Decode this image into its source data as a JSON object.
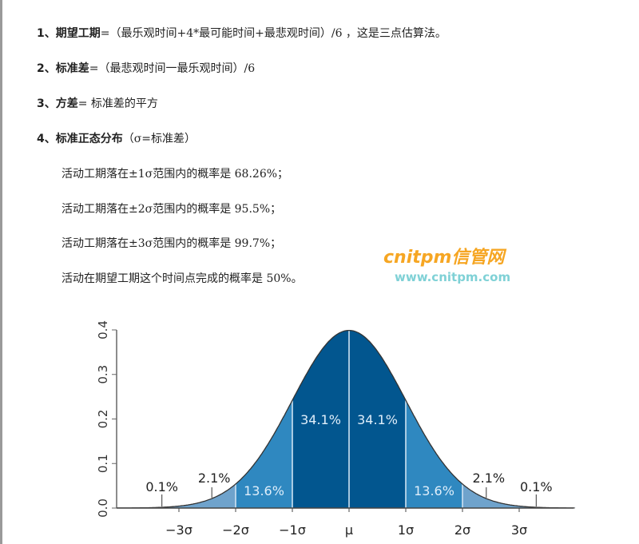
{
  "formulas": [
    {
      "num": "1、",
      "term": "期望工期",
      "rest": "=（最乐观时间+4*最可能时间+最悲观时间）/6 ，这是三点估算法。"
    },
    {
      "num": "2、",
      "term": "标准差",
      "rest": "=（最悲观时间一最乐观时间）/6"
    },
    {
      "num": "3、",
      "term": "方差",
      "rest": "= 标准差的平方"
    },
    {
      "num": "4、",
      "term": "标准正态分布",
      "rest": "（σ=标准差）"
    }
  ],
  "facts": [
    "活动工期落在±1σ范围内的概率是 68.26%；",
    "活动工期落在±2σ范围内的概率是 95.5%；",
    "活动工期落在±3σ范围内的概率是 99.7%；",
    "活动在期望工期这个时间点完成的概率是 50%。"
  ],
  "watermark": {
    "brand": "cnitpm信管网",
    "url": "www.cnitpm.com"
  },
  "chart_data": {
    "type": "area",
    "title": "",
    "xlabel": "",
    "ylabel": "",
    "ylim": [
      0,
      0.4
    ],
    "yticks": [
      "0.0",
      "0.1",
      "0.2",
      "0.3",
      "0.4"
    ],
    "xticks": [
      "−3σ",
      "−2σ",
      "−1σ",
      "μ",
      "1σ",
      "2σ",
      "3σ"
    ],
    "xtick_values": [
      -3,
      -2,
      -1,
      0,
      1,
      2,
      3
    ],
    "xlim": [
      -4.1,
      4
    ],
    "curve": "standard normal pdf",
    "regions": [
      {
        "from": -3,
        "to": -2,
        "label": "2.1%",
        "color": "#6fa3cc"
      },
      {
        "from": -2,
        "to": -1,
        "label": "13.6%",
        "color": "#2f88c0"
      },
      {
        "from": -1,
        "to": 0,
        "label": "34.1%",
        "color": "#02568f"
      },
      {
        "from": 0,
        "to": 1,
        "label": "34.1%",
        "color": "#02568f"
      },
      {
        "from": 1,
        "to": 2,
        "label": "13.6%",
        "color": "#2f88c0"
      },
      {
        "from": 2,
        "to": 3,
        "label": "2.1%",
        "color": "#6fa3cc"
      }
    ],
    "tail_labels": [
      {
        "x": -3,
        "label": "0.1%"
      },
      {
        "x": 3,
        "label": "0.1%"
      }
    ]
  }
}
